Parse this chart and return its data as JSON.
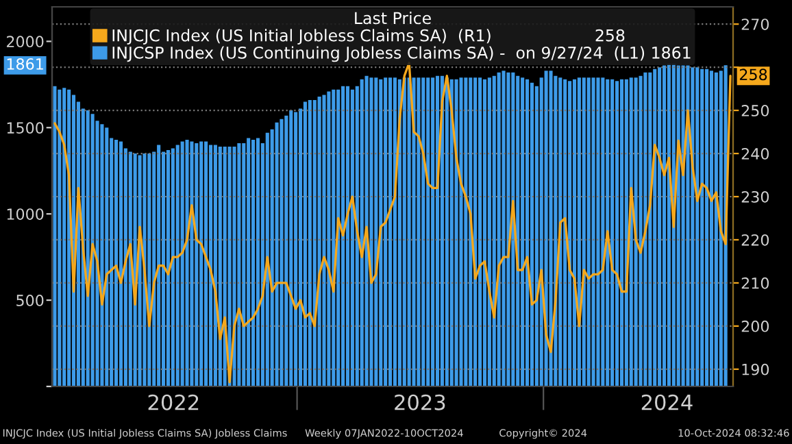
{
  "chart_data": {
    "type": "bar",
    "legend_title": "Last Price",
    "x": [
      "2022-01-07",
      "2022-01-14",
      "2022-01-21",
      "2022-01-28",
      "2022-02-04",
      "2022-02-11",
      "2022-02-18",
      "2022-02-25",
      "2022-03-04",
      "2022-03-11",
      "2022-03-18",
      "2022-03-25",
      "2022-04-01",
      "2022-04-08",
      "2022-04-15",
      "2022-04-22",
      "2022-04-29",
      "2022-05-06",
      "2022-05-13",
      "2022-05-20",
      "2022-05-27",
      "2022-06-03",
      "2022-06-10",
      "2022-06-17",
      "2022-06-24",
      "2022-07-01",
      "2022-07-08",
      "2022-07-15",
      "2022-07-22",
      "2022-07-29",
      "2022-08-05",
      "2022-08-12",
      "2022-08-19",
      "2022-08-26",
      "2022-09-02",
      "2022-09-09",
      "2022-09-16",
      "2022-09-23",
      "2022-09-30",
      "2022-10-07",
      "2022-10-14",
      "2022-10-21",
      "2022-10-28",
      "2022-11-04",
      "2022-11-11",
      "2022-11-18",
      "2022-11-25",
      "2022-12-02",
      "2022-12-09",
      "2022-12-16",
      "2022-12-23",
      "2022-12-30",
      "2023-01-06",
      "2023-01-13",
      "2023-01-20",
      "2023-01-27",
      "2023-02-03",
      "2023-02-10",
      "2023-02-17",
      "2023-02-24",
      "2023-03-03",
      "2023-03-10",
      "2023-03-17",
      "2023-03-24",
      "2023-03-31",
      "2023-04-07",
      "2023-04-14",
      "2023-04-21",
      "2023-04-28",
      "2023-05-05",
      "2023-05-12",
      "2023-05-19",
      "2023-05-26",
      "2023-06-02",
      "2023-06-09",
      "2023-06-16",
      "2023-06-23",
      "2023-06-30",
      "2023-07-07",
      "2023-07-14",
      "2023-07-21",
      "2023-07-28",
      "2023-08-04",
      "2023-08-11",
      "2023-08-18",
      "2023-08-25",
      "2023-09-01",
      "2023-09-08",
      "2023-09-15",
      "2023-09-22",
      "2023-09-29",
      "2023-10-06",
      "2023-10-13",
      "2023-10-20",
      "2023-10-27",
      "2023-11-03",
      "2023-11-10",
      "2023-11-17",
      "2023-11-24",
      "2023-12-01",
      "2023-12-08",
      "2023-12-15",
      "2023-12-22",
      "2023-12-29",
      "2024-01-05",
      "2024-01-12",
      "2024-01-19",
      "2024-01-26",
      "2024-02-02",
      "2024-02-09",
      "2024-02-16",
      "2024-02-23",
      "2024-03-01",
      "2024-03-08",
      "2024-03-15",
      "2024-03-22",
      "2024-03-29",
      "2024-04-05",
      "2024-04-12",
      "2024-04-19",
      "2024-04-26",
      "2024-05-03",
      "2024-05-10",
      "2024-05-17",
      "2024-05-24",
      "2024-05-31",
      "2024-06-07",
      "2024-06-14",
      "2024-06-21",
      "2024-06-28",
      "2024-07-05",
      "2024-07-12",
      "2024-07-19",
      "2024-07-26",
      "2024-08-02",
      "2024-08-09",
      "2024-08-16",
      "2024-08-23",
      "2024-08-30",
      "2024-09-06",
      "2024-09-13",
      "2024-09-20",
      "2024-09-27",
      "2024-10-04"
    ],
    "series": [
      {
        "name": "INJCJC Index (US Initial Jobless Claims SA)  (R1)                    258",
        "type": "line",
        "axis": "y2",
        "color": "#f5a81c",
        "values": [
          247,
          245,
          242,
          235,
          208,
          232,
          218,
          207,
          219,
          215,
          205,
          212,
          213,
          214,
          210,
          215,
          219,
          205,
          223,
          213,
          200,
          210,
          214,
          214,
          212,
          216,
          216,
          217,
          220,
          228,
          220,
          219,
          216,
          213,
          208,
          197,
          202,
          187,
          200,
          204,
          200,
          201,
          202,
          204,
          207,
          216,
          208,
          210,
          210,
          210,
          207,
          204,
          206,
          202,
          203,
          200,
          212,
          216,
          213,
          208,
          225,
          221,
          226,
          230,
          222,
          216,
          223,
          210,
          212,
          223,
          224,
          227,
          230,
          248,
          258,
          261,
          245,
          244,
          240,
          233,
          232,
          232,
          252,
          258,
          250,
          239,
          233,
          230,
          226,
          211,
          214,
          215,
          208,
          202,
          214,
          216,
          216,
          229,
          213,
          213,
          216,
          205,
          206,
          213,
          198,
          194,
          206,
          224,
          225,
          213,
          211,
          200,
          213,
          211,
          212,
          212,
          213,
          222,
          213,
          212,
          208,
          208,
          232,
          220,
          217,
          222,
          228,
          242,
          239,
          235,
          239,
          223,
          243,
          235,
          250,
          237,
          229,
          233,
          232,
          229,
          231,
          222,
          219,
          258
        ],
        "value_labels": [
          null,
          null,
          null,
          null,
          null,
          null,
          null,
          null,
          null,
          null,
          null,
          null,
          null,
          null,
          null,
          null,
          null,
          null,
          null,
          null,
          null,
          null,
          null,
          null,
          null,
          null,
          null,
          null,
          null,
          null,
          null,
          null,
          null,
          null,
          null,
          null,
          null,
          null,
          null,
          null,
          null,
          null,
          null,
          null,
          null,
          null,
          null,
          null,
          null,
          null,
          null,
          null,
          null,
          null,
          null,
          null,
          null,
          null,
          null,
          null,
          null,
          null,
          null,
          null,
          null,
          null,
          null,
          null,
          null,
          null,
          null,
          null,
          null,
          null,
          null,
          null,
          null,
          null,
          null,
          null,
          null,
          null,
          null,
          null,
          null,
          null,
          null,
          null,
          null,
          null,
          null,
          null,
          null,
          null,
          null,
          null,
          null,
          null,
          null,
          null,
          null,
          null,
          null,
          null,
          null,
          null,
          null,
          null,
          null,
          null,
          null,
          null,
          null,
          null,
          null,
          null,
          null,
          null,
          null,
          null,
          null,
          null,
          null,
          null,
          null,
          null,
          null,
          null,
          null,
          null,
          null,
          null,
          null,
          null,
          null,
          null,
          null,
          null,
          null,
          null,
          null,
          null,
          null,
          "258"
        ]
      },
      {
        "name": "INJCSP Index (US Continuing Jobless Claims SA) -  on 9/27/24  (L1) 1861",
        "color": "#3d9be9",
        "values": [
          1740,
          1720,
          1730,
          1720,
          1690,
          1650,
          1610,
          1600,
          1580,
          1540,
          1520,
          1500,
          1440,
          1430,
          1420,
          1380,
          1360,
          1350,
          1340,
          1350,
          1350,
          1360,
          1400,
          1360,
          1370,
          1380,
          1400,
          1420,
          1430,
          1420,
          1410,
          1420,
          1420,
          1400,
          1400,
          1390,
          1390,
          1390,
          1390,
          1410,
          1410,
          1440,
          1430,
          1440,
          1410,
          1470,
          1490,
          1530,
          1550,
          1570,
          1600,
          1590,
          1610,
          1650,
          1660,
          1660,
          1680,
          1690,
          1710,
          1720,
          1720,
          1740,
          1740,
          1720,
          1740,
          1780,
          1800,
          1790,
          1790,
          1780,
          1790,
          1790,
          1790,
          1780,
          1790,
          1790,
          1790,
          1790,
          1790,
          1790,
          1790,
          1800,
          1800,
          1790,
          1780,
          1780,
          1790,
          1790,
          1790,
          1790,
          1790,
          1780,
          1790,
          1800,
          1820,
          1830,
          1820,
          1820,
          1800,
          1790,
          1780,
          1760,
          1740,
          1790,
          1830,
          1830,
          1800,
          1790,
          1780,
          1770,
          1780,
          1790,
          1790,
          1790,
          1790,
          1790,
          1790,
          1780,
          1780,
          1770,
          1780,
          1780,
          1790,
          1790,
          1800,
          1820,
          1820,
          1840,
          1850,
          1860,
          1870,
          1870,
          1860,
          1860,
          1860,
          1850,
          1850,
          1840,
          1840,
          1830,
          1820,
          1830,
          1861,
          null
        ]
      }
    ],
    "xlim": [
      "2022-01-03",
      "2024-10-08"
    ],
    "xticks": [
      {
        "value": "2022-07-02",
        "label": "2022"
      },
      {
        "value": "2023-01-01",
        "label": null
      },
      {
        "value": "2023-07-02",
        "label": "2023"
      },
      {
        "value": "2024-01-01",
        "label": null
      },
      {
        "value": "2024-07-02",
        "label": "2024"
      }
    ],
    "ylim": [
      0,
      2200
    ],
    "yticks": [
      {
        "value": 0,
        "label": null
      },
      500,
      1000,
      1500,
      2000
    ],
    "y2lim": [
      186,
      274
    ],
    "y2ticks": [
      190,
      200,
      210,
      220,
      230,
      240,
      250,
      {
        "value": 260,
        "label": null
      },
      270
    ],
    "grid": "y",
    "legend": "top",
    "annotations": [
      "INJCJC Index (US Initial Jobless Claims SA) Jobless Claims",
      "Weekly 07JAN2022-10OCT2024",
      "Copyright© 2024",
      "10-Oct-2024 08:32:46",
      "1861"
    ]
  }
}
